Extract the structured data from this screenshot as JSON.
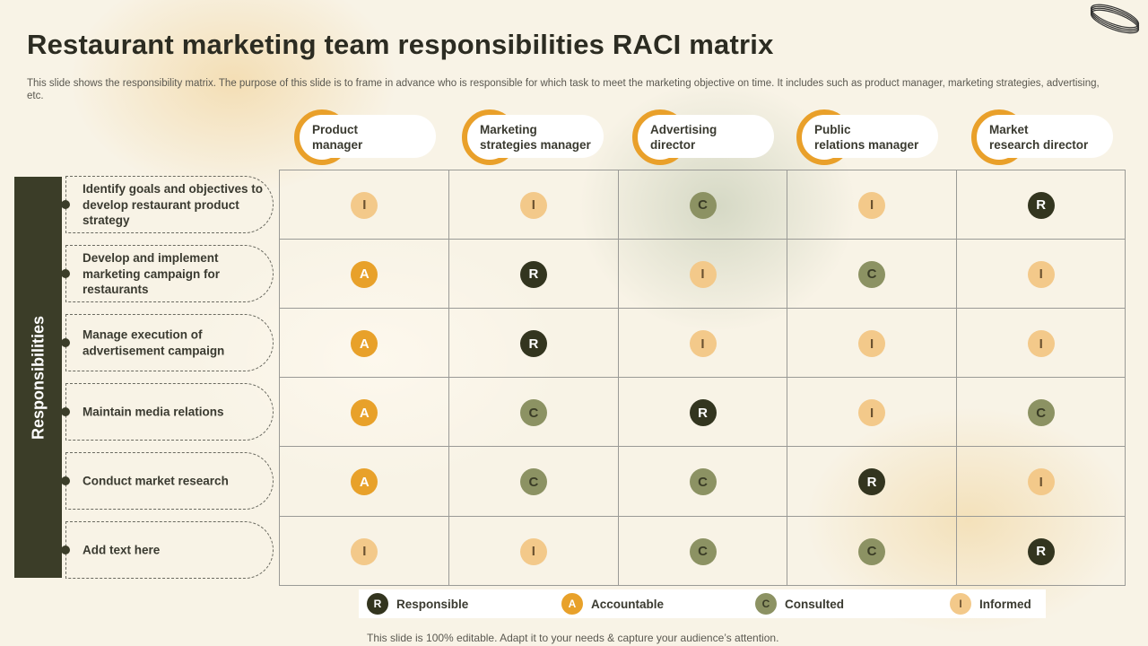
{
  "slide": {
    "title": "Restaurant marketing team responsibilities RACI matrix",
    "subtitle": "This slide shows the responsibility matrix. The purpose of this slide is to frame in advance who is responsible for which task to meet the marketing objective on time. It includes such as product manager, marketing strategies, advertising, etc.",
    "footer": "This slide is 100% editable. Adapt it to your needs & capture your audience’s attention."
  },
  "band_label": "Responsibilities",
  "columns": [
    {
      "label": "Product\nmanager"
    },
    {
      "label": "Marketing\nstrategies manager"
    },
    {
      "label": "Advertising\ndirector"
    },
    {
      "label": "Public\nrelations manager"
    },
    {
      "label": "Market\nresearch director"
    }
  ],
  "rows": [
    {
      "task": "Identify goals and objectives to develop restaurant product strategy",
      "cells": [
        "I",
        "I",
        "C",
        "I",
        "R"
      ]
    },
    {
      "task": "Develop and implement marketing campaign for restaurants",
      "cells": [
        "A",
        "R",
        "I",
        "C",
        "I"
      ]
    },
    {
      "task": "Manage execution of advertisement campaign",
      "cells": [
        "A",
        "R",
        "I",
        "I",
        "I"
      ]
    },
    {
      "task": "Maintain media relations",
      "cells": [
        "A",
        "C",
        "R",
        "I",
        "C"
      ]
    },
    {
      "task": "Conduct market research",
      "cells": [
        "A",
        "C",
        "C",
        "R",
        "I"
      ]
    },
    {
      "task": "Add text here",
      "cells": [
        "I",
        "I",
        "C",
        "C",
        "R"
      ]
    }
  ],
  "legend": [
    {
      "code": "R",
      "label": "Responsible"
    },
    {
      "code": "A",
      "label": "Accountable"
    },
    {
      "code": "C",
      "label": "Consulted"
    },
    {
      "code": "I",
      "label": "Informed"
    }
  ],
  "colors": {
    "responsible": "#33351f",
    "accountable": "#e8a12a",
    "consulted": "#8c9263",
    "informed": "#f3c98a"
  }
}
